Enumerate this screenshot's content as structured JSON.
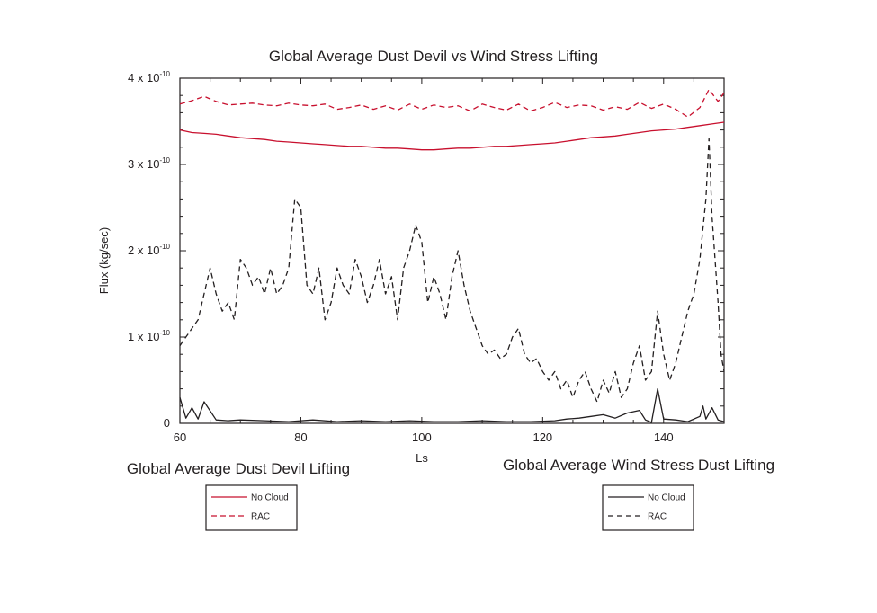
{
  "chart_data": {
    "type": "line",
    "title": "Global Average Dust Devil vs Wind Stress Lifting",
    "xlabel": "Ls",
    "ylabel": "Flux (kg/sec)",
    "xlim": [
      60,
      150
    ],
    "ylim": [
      0,
      4e-10
    ],
    "grid": false,
    "x_ticks": [
      {
        "value": 60,
        "label": "60"
      },
      {
        "value": 80,
        "label": "80"
      },
      {
        "value": 100,
        "label": "100"
      },
      {
        "value": 120,
        "label": "120"
      },
      {
        "value": 140,
        "label": "140"
      }
    ],
    "y_ticks": [
      {
        "value": 0,
        "label": "0",
        "exp": ""
      },
      {
        "value": 1e-10,
        "label": "1 x 10",
        "exp": "-10"
      },
      {
        "value": 2e-10,
        "label": "2 x 10",
        "exp": "-10"
      },
      {
        "value": 3e-10,
        "label": "3 x 10",
        "exp": "-10"
      },
      {
        "value": 4e-10,
        "label": "4 x 10",
        "exp": "-10"
      }
    ],
    "legends": [
      {
        "title": "Global Average Dust Devil Lifting",
        "placement": "bottom-left",
        "entries": [
          {
            "label": "No Cloud",
            "color": "#c8102e",
            "dash": "solid"
          },
          {
            "label": "RAC",
            "color": "#c8102e",
            "dash": "dashed"
          }
        ]
      },
      {
        "title": "Global Average Wind Stress Dust Lifting",
        "placement": "bottom-right",
        "entries": [
          {
            "label": "No Cloud",
            "color": "#231f20",
            "dash": "solid"
          },
          {
            "label": "RAC",
            "color": "#231f20",
            "dash": "dashed"
          }
        ]
      }
    ],
    "series": [
      {
        "group": "Global Average Dust Devil Lifting",
        "label": "No Cloud",
        "color": "#c8102e",
        "dash": "solid",
        "x": [
          60,
          62,
          64,
          66,
          68,
          70,
          72,
          74,
          76,
          78,
          80,
          82,
          84,
          86,
          88,
          90,
          92,
          94,
          96,
          98,
          100,
          102,
          104,
          106,
          108,
          110,
          112,
          114,
          116,
          118,
          120,
          122,
          124,
          126,
          128,
          130,
          132,
          134,
          136,
          138,
          140,
          142,
          144,
          146,
          148,
          150
        ],
        "y": [
          3.4e-10,
          3.37e-10,
          3.36e-10,
          3.35e-10,
          3.33e-10,
          3.31e-10,
          3.3e-10,
          3.29e-10,
          3.27e-10,
          3.26e-10,
          3.25e-10,
          3.24e-10,
          3.23e-10,
          3.22e-10,
          3.21e-10,
          3.21e-10,
          3.2e-10,
          3.19e-10,
          3.19e-10,
          3.18e-10,
          3.17e-10,
          3.17e-10,
          3.18e-10,
          3.19e-10,
          3.19e-10,
          3.2e-10,
          3.21e-10,
          3.21e-10,
          3.22e-10,
          3.23e-10,
          3.24e-10,
          3.25e-10,
          3.27e-10,
          3.29e-10,
          3.31e-10,
          3.32e-10,
          3.33e-10,
          3.35e-10,
          3.37e-10,
          3.39e-10,
          3.4e-10,
          3.41e-10,
          3.43e-10,
          3.45e-10,
          3.47e-10,
          3.49e-10
        ]
      },
      {
        "group": "Global Average Dust Devil Lifting",
        "label": "RAC",
        "color": "#c8102e",
        "dash": "dashed",
        "x": [
          60,
          62,
          64,
          66,
          68,
          70,
          72,
          74,
          76,
          78,
          80,
          82,
          84,
          86,
          88,
          90,
          92,
          94,
          96,
          98,
          100,
          102,
          104,
          106,
          108,
          110,
          112,
          114,
          116,
          118,
          120,
          122,
          124,
          126,
          128,
          130,
          132,
          134,
          136,
          138,
          140,
          142,
          144,
          146,
          147.5,
          149,
          150
        ],
        "y": [
          3.7e-10,
          3.74e-10,
          3.79e-10,
          3.73e-10,
          3.69e-10,
          3.7e-10,
          3.71e-10,
          3.69e-10,
          3.68e-10,
          3.71e-10,
          3.69e-10,
          3.68e-10,
          3.7e-10,
          3.64e-10,
          3.66e-10,
          3.69e-10,
          3.64e-10,
          3.68e-10,
          3.63e-10,
          3.7e-10,
          3.64e-10,
          3.69e-10,
          3.66e-10,
          3.68e-10,
          3.62e-10,
          3.7e-10,
          3.66e-10,
          3.63e-10,
          3.7e-10,
          3.62e-10,
          3.66e-10,
          3.72e-10,
          3.66e-10,
          3.69e-10,
          3.68e-10,
          3.63e-10,
          3.67e-10,
          3.64e-10,
          3.72e-10,
          3.65e-10,
          3.7e-10,
          3.64e-10,
          3.55e-10,
          3.66e-10,
          3.87e-10,
          3.73e-10,
          3.83e-10
        ]
      },
      {
        "group": "Global Average Wind Stress Dust Lifting",
        "label": "No Cloud",
        "color": "#231f20",
        "dash": "solid",
        "x": [
          60,
          61,
          62,
          63,
          64,
          66,
          68,
          70,
          74,
          78,
          82,
          86,
          90,
          94,
          98,
          102,
          106,
          110,
          114,
          118,
          122,
          124,
          126,
          128,
          130,
          132,
          134,
          136,
          137,
          138,
          139,
          140,
          142,
          144,
          146,
          146.5,
          147,
          148,
          149,
          150
        ],
        "y": [
          3e-11,
          6e-12,
          1.8e-11,
          5e-12,
          2.5e-11,
          4e-12,
          3e-12,
          4e-12,
          3e-12,
          2e-12,
          4e-12,
          2e-12,
          3e-12,
          2e-12,
          3e-12,
          2e-12,
          2e-12,
          3e-12,
          2e-12,
          2e-12,
          3e-12,
          5e-12,
          6e-12,
          8e-12,
          1e-11,
          6e-12,
          1.2e-11,
          1.5e-11,
          4e-12,
          1e-12,
          4e-11,
          5e-12,
          4e-12,
          2e-12,
          8e-12,
          2e-11,
          5e-12,
          1.8e-11,
          4e-12,
          2e-12
        ]
      },
      {
        "group": "Global Average Wind Stress Dust Lifting",
        "label": "RAC",
        "color": "#231f20",
        "dash": "dashed",
        "x": [
          60,
          61,
          62,
          63,
          64,
          65,
          66,
          67,
          68,
          69,
          70,
          71,
          72,
          73,
          74,
          75,
          76,
          77,
          78,
          79,
          80,
          81,
          82,
          83,
          84,
          85,
          86,
          87,
          88,
          89,
          90,
          91,
          92,
          93,
          94,
          95,
          96,
          97,
          98,
          99,
          100,
          101,
          102,
          103,
          104,
          105,
          106,
          107,
          108,
          109,
          110,
          111,
          112,
          113,
          114,
          115,
          116,
          117,
          118,
          119,
          120,
          121,
          122,
          123,
          124,
          125,
          126,
          127,
          128,
          129,
          130,
          131,
          132,
          133,
          134,
          135,
          136,
          137,
          138,
          139,
          140,
          141,
          142,
          143,
          144,
          145,
          146,
          147,
          147.5,
          148,
          149,
          149.5,
          150
        ],
        "y": [
          9e-11,
          1e-10,
          1.1e-10,
          1.2e-10,
          1.5e-10,
          1.8e-10,
          1.5e-10,
          1.3e-10,
          1.4e-10,
          1.2e-10,
          1.9e-10,
          1.8e-10,
          1.6e-10,
          1.7e-10,
          1.5e-10,
          1.8e-10,
          1.5e-10,
          1.6e-10,
          1.8e-10,
          2.6e-10,
          2.5e-10,
          1.6e-10,
          1.5e-10,
          1.8e-10,
          1.2e-10,
          1.4e-10,
          1.8e-10,
          1.6e-10,
          1.5e-10,
          1.9e-10,
          1.7e-10,
          1.4e-10,
          1.6e-10,
          1.9e-10,
          1.5e-10,
          1.7e-10,
          1.2e-10,
          1.8e-10,
          2e-10,
          2.3e-10,
          2.1e-10,
          1.4e-10,
          1.7e-10,
          1.5e-10,
          1.2e-10,
          1.7e-10,
          2e-10,
          1.6e-10,
          1.3e-10,
          1.1e-10,
          9e-11,
          8e-11,
          8.5e-11,
          7.5e-11,
          8e-11,
          1e-10,
          1.1e-10,
          8e-11,
          7e-11,
          7.5e-11,
          6e-11,
          5e-11,
          6e-11,
          4e-11,
          5e-11,
          3e-11,
          5e-11,
          6e-11,
          4e-11,
          2.5e-11,
          5e-11,
          3.5e-11,
          6e-11,
          3e-11,
          4e-11,
          7e-11,
          9e-11,
          5e-11,
          6e-11,
          1.3e-10,
          8e-11,
          5e-11,
          7e-11,
          1e-10,
          1.3e-10,
          1.5e-10,
          1.9e-10,
          2.6e-10,
          3.3e-10,
          2.4e-10,
          1.4e-10,
          8e-11,
          6e-11
        ]
      }
    ]
  }
}
